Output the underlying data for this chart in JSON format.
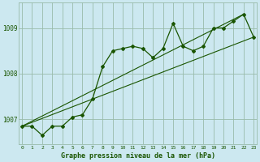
{
  "title": "Graphe pression niveau de la mer (hPa)",
  "bg_color": "#cce8f0",
  "grid_color": "#99bbaa",
  "line_color": "#1a5500",
  "hours": [
    0,
    1,
    2,
    3,
    4,
    5,
    6,
    7,
    8,
    9,
    10,
    11,
    12,
    13,
    14,
    15,
    16,
    17,
    18,
    19,
    20,
    21,
    22,
    23
  ],
  "main_data": [
    1006.85,
    1006.85,
    1006.65,
    1006.85,
    1006.85,
    1007.05,
    1007.1,
    1007.45,
    1008.15,
    1008.5,
    1008.55,
    1008.6,
    1008.55,
    1008.35,
    1008.55,
    1009.1,
    1008.6,
    1008.5,
    1008.6,
    1009.0,
    1009.0,
    1009.15,
    1009.3,
    1008.8
  ],
  "trend1_x": [
    0,
    22
  ],
  "trend1_y": [
    1006.85,
    1009.3
  ],
  "trend2_x": [
    0,
    23
  ],
  "trend2_y": [
    1006.85,
    1008.8
  ],
  "ylim_min": 1006.45,
  "ylim_max": 1009.55,
  "yticks": [
    1007,
    1008,
    1009
  ],
  "xlim_min": -0.3,
  "xlim_max": 23.3,
  "x_labels": [
    "0",
    "1",
    "2",
    "3",
    "4",
    "5",
    "6",
    "7",
    "8",
    "9",
    "10",
    "11",
    "12",
    "13",
    "14",
    "15",
    "16",
    "17",
    "18",
    "19",
    "20",
    "21",
    "22",
    "23"
  ]
}
